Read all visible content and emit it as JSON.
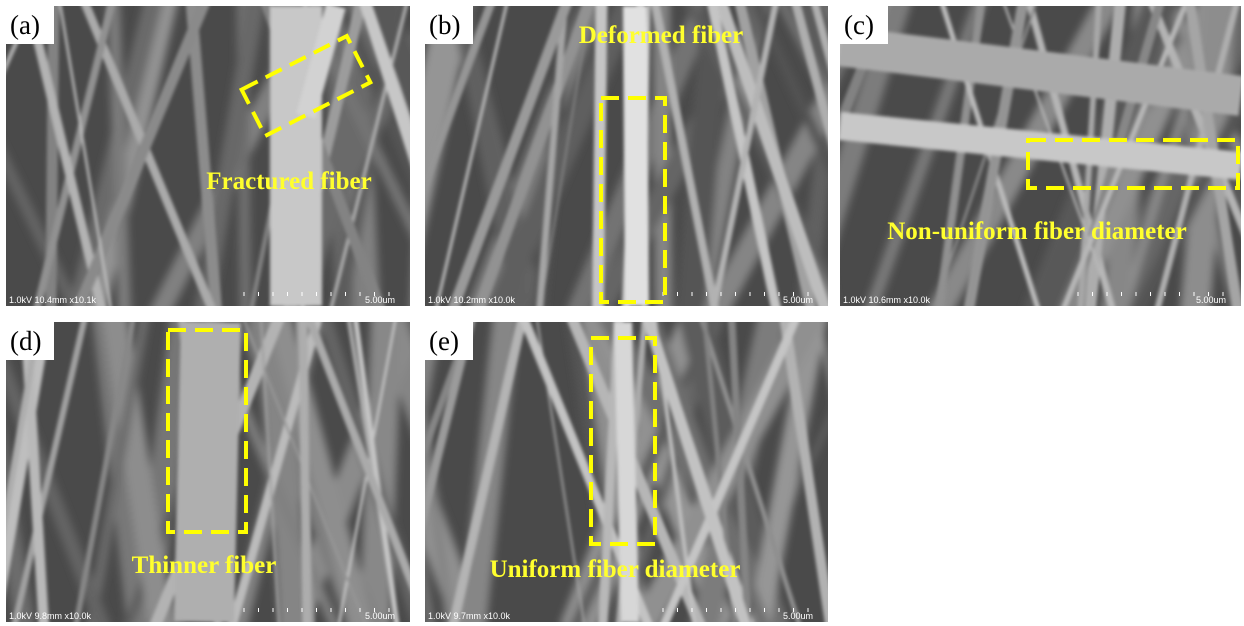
{
  "panels": [
    {
      "label": "(a)",
      "annotation": "Fractured fiber",
      "info": "1.0kV 10.4mm x10.1k",
      "scale": "5.00um"
    },
    {
      "label": "(b)",
      "annotation": "Deformed fiber",
      "info": "1.0kV 10.2mm x10.0k",
      "scale": "5.00um"
    },
    {
      "label": "(c)",
      "annotation": "Non-uniform fiber diameter",
      "info": "1.0kV 10.6mm x10.0k",
      "scale": "5.00um"
    },
    {
      "label": "(d)",
      "annotation": "Thinner fiber",
      "info": "1.0kV 9.8mm x10.0k",
      "scale": "5.00um"
    },
    {
      "label": "(e)",
      "annotation": "Uniform fiber diameter",
      "info": "1.0kV 9.7mm x10.0k",
      "scale": "5.00um"
    }
  ]
}
